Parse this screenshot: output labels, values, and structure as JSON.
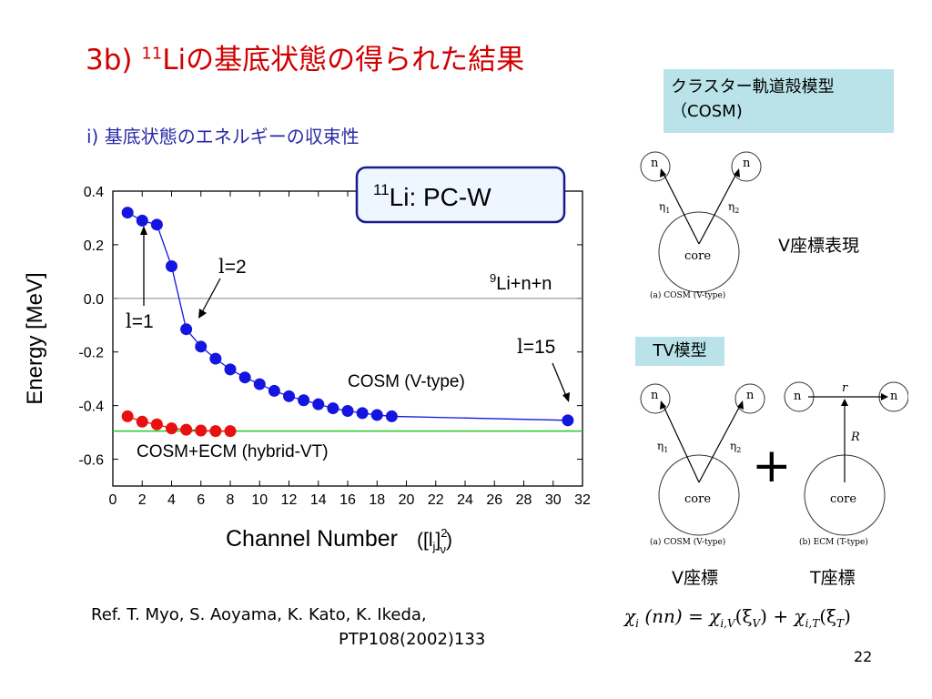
{
  "title": {
    "prefix": "3b) ",
    "sup": "11",
    "main": "Liの基底状態の得られた結果"
  },
  "subtitle": "i) 基底状態のエネルギーの収束性",
  "cosm_box": {
    "line1": "クラスター軌道殻模型",
    "line2": "（COSM)"
  },
  "tv_box": "TV模型",
  "v_label": "V座標表現",
  "v_coord": "V座標",
  "t_coord": "T座標",
  "plus": "+",
  "reference": {
    "line1": "Ref. T. Myo, S. Aoyama, K. Kato, K. Ikeda,",
    "line2": "PTP108(2002)133"
  },
  "page_number": "22",
  "formula": {
    "lhs": "χ",
    "lhs_sub": "i",
    "arg": "(nn)",
    "eq": "=",
    "t1": "χ",
    "t1_sub": "i,V",
    "t1_arg": "(ξ",
    "t1_arg_sub": "V",
    "plus": "+",
    "t2": "χ",
    "t2_sub": "i,T",
    "t2_arg": "(ξ",
    "t2_arg_sub": "T",
    "close": ")"
  },
  "diagrams": {
    "n": "n",
    "eta1": "η",
    "eta1_sub": "1",
    "eta2": "η",
    "eta2_sub": "2",
    "core": "core",
    "r": "r",
    "R": "R",
    "caption_top": "(a) COSM (V-type)",
    "caption_a": "(a) COSM (V-type)",
    "caption_b": "(b) ECM (T-type)"
  },
  "chart_data": {
    "type": "scatter",
    "title": "",
    "badge": {
      "sup": "11",
      "text": "Li: PC-W"
    },
    "xlabel": "Channel Number",
    "xlabel_math": "([l",
    "xlabel_math_sub": "j",
    "xlabel_math_close": "]",
    "xlabel_math_supsub_sup": "2",
    "xlabel_math_supsub_sub": "ν",
    "xlabel_math_end": ")",
    "ylabel": "Energy [MeV]",
    "xlim": [
      0,
      32
    ],
    "ylim": [
      -0.7,
      0.4
    ],
    "xticks": [
      0,
      2,
      4,
      6,
      8,
      10,
      12,
      14,
      16,
      18,
      20,
      22,
      24,
      26,
      28,
      30,
      32
    ],
    "yticks": [
      0.4,
      0.2,
      0.0,
      -0.2,
      -0.4,
      -0.6
    ],
    "ytick_labels": [
      "0.4",
      "0.2",
      "0.0",
      "-0.2",
      "-0.4",
      "-0.6"
    ],
    "threshold": {
      "value": 0.0,
      "label_sup": "9",
      "label": "Li+n+n",
      "color": "#888888"
    },
    "hybrid_line": {
      "value": -0.495,
      "color": "#22cc22"
    },
    "series": [
      {
        "name": "COSM (V-type)",
        "color": "#1515e0",
        "x": [
          1,
          2,
          3,
          4,
          5,
          6,
          7,
          8,
          9,
          10,
          11,
          12,
          13,
          14,
          15,
          16,
          17,
          18,
          19,
          31
        ],
        "y": [
          0.32,
          0.29,
          0.275,
          0.12,
          -0.115,
          -0.18,
          -0.225,
          -0.265,
          -0.295,
          -0.32,
          -0.345,
          -0.365,
          -0.38,
          -0.395,
          -0.41,
          -0.42,
          -0.428,
          -0.435,
          -0.44,
          -0.455
        ]
      },
      {
        "name": "COSM+ECM (hybrid-VT)",
        "color": "#e81010",
        "x": [
          1,
          2,
          3,
          4,
          5,
          6,
          7,
          8
        ],
        "y": [
          -0.44,
          -0.46,
          -0.47,
          -0.485,
          -0.49,
          -0.493,
          -0.495,
          -0.495
        ]
      }
    ],
    "annotations": [
      {
        "text_l": "l",
        "text": "=1"
      },
      {
        "text_l": "l",
        "text": "=2"
      },
      {
        "text_l": "l",
        "text": "=15"
      }
    ]
  }
}
